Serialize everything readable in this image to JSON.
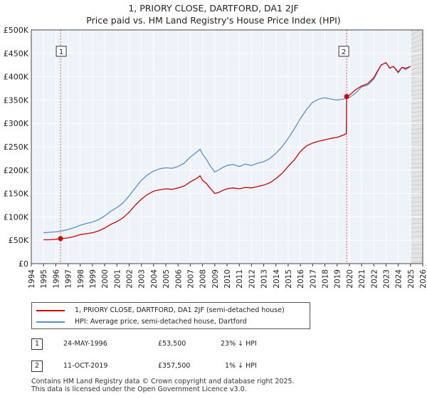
{
  "chart_data": {
    "type": "line",
    "title": "1, PRIORY CLOSE, DARTFORD, DA1 2JF",
    "subtitle": "Price paid vs. HM Land Registry's House Price Index (HPI)",
    "xlim": [
      1994,
      2026
    ],
    "ylim": [
      0,
      500000
    ],
    "x_ticks": [
      "1994",
      "1995",
      "1996",
      "1997",
      "1998",
      "1999",
      "2000",
      "2001",
      "2002",
      "2003",
      "2004",
      "2005",
      "2006",
      "2007",
      "2008",
      "2009",
      "2010",
      "2011",
      "2012",
      "2013",
      "2014",
      "2015",
      "2016",
      "2017",
      "2018",
      "2019",
      "2020",
      "2021",
      "2022",
      "2023",
      "2024",
      "2025",
      "2026"
    ],
    "y_ticks": [
      {
        "value": 0,
        "label": "£0"
      },
      {
        "value": 50000,
        "label": "£50K"
      },
      {
        "value": 100000,
        "label": "£100K"
      },
      {
        "value": 150000,
        "label": "£150K"
      },
      {
        "value": 200000,
        "label": "£200K"
      },
      {
        "value": 250000,
        "label": "£250K"
      },
      {
        "value": 300000,
        "label": "£300K"
      },
      {
        "value": 350000,
        "label": "£350K"
      },
      {
        "value": 400000,
        "label": "£400K"
      },
      {
        "value": 450000,
        "label": "£450K"
      },
      {
        "value": 500000,
        "label": "£500K"
      }
    ],
    "grid": true,
    "series": [
      {
        "name": "1, PRIORY CLOSE, DARTFORD, DA1 2JF (semi-detached house)",
        "color": "#cc0000",
        "x": [
          1995.0,
          1995.5,
          1996.0,
          1996.39,
          1997.0,
          1997.5,
          1998.0,
          1998.5,
          1999.0,
          1999.5,
          2000.0,
          2000.5,
          2001.0,
          2001.5,
          2002.0,
          2002.5,
          2003.0,
          2003.5,
          2004.0,
          2004.5,
          2005.0,
          2005.5,
          2006.0,
          2006.5,
          2007.0,
          2007.5,
          2007.8,
          2008.0,
          2008.3,
          2008.6,
          2009.0,
          2009.3,
          2009.6,
          2010.0,
          2010.5,
          2011.0,
          2011.5,
          2012.0,
          2012.5,
          2013.0,
          2013.5,
          2014.0,
          2014.5,
          2015.0,
          2015.5,
          2016.0,
          2016.5,
          2017.0,
          2017.5,
          2018.0,
          2018.5,
          2019.0,
          2019.5,
          2019.75,
          2019.78,
          2020.0,
          2020.5,
          2021.0,
          2021.5,
          2022.0,
          2022.3,
          2022.6,
          2023.0,
          2023.3,
          2023.6,
          2024.0,
          2024.3,
          2024.6,
          2025.0
        ],
        "values": [
          51000,
          51000,
          52000,
          53500,
          55000,
          58000,
          62000,
          64000,
          66000,
          70000,
          76000,
          84000,
          90000,
          98000,
          110000,
          125000,
          138000,
          148000,
          155000,
          158000,
          160000,
          159000,
          162000,
          166000,
          175000,
          182000,
          188000,
          178000,
          172000,
          162000,
          150000,
          152000,
          156000,
          160000,
          162000,
          160000,
          163000,
          162000,
          165000,
          168000,
          173000,
          182000,
          193000,
          208000,
          222000,
          240000,
          252000,
          258000,
          262000,
          265000,
          268000,
          270000,
          275000,
          278000,
          357500,
          360000,
          372000,
          380000,
          385000,
          398000,
          412000,
          425000,
          430000,
          418000,
          422000,
          410000,
          420000,
          418000,
          422000
        ]
      },
      {
        "name": "HPI: Average price, semi-detached house, Dartford",
        "color": "#5b8fc7",
        "x": [
          1995.0,
          1995.5,
          1996.0,
          1996.5,
          1997.0,
          1997.5,
          1998.0,
          1998.5,
          1999.0,
          1999.5,
          2000.0,
          2000.5,
          2001.0,
          2001.5,
          2002.0,
          2002.5,
          2003.0,
          2003.5,
          2004.0,
          2004.5,
          2005.0,
          2005.5,
          2006.0,
          2006.5,
          2007.0,
          2007.5,
          2007.8,
          2008.0,
          2008.3,
          2008.6,
          2009.0,
          2009.3,
          2009.6,
          2010.0,
          2010.5,
          2011.0,
          2011.5,
          2012.0,
          2012.5,
          2013.0,
          2013.5,
          2014.0,
          2014.5,
          2015.0,
          2015.5,
          2016.0,
          2016.5,
          2017.0,
          2017.5,
          2018.0,
          2018.5,
          2019.0,
          2019.5,
          2020.0,
          2020.5,
          2021.0,
          2021.5,
          2022.0,
          2022.3,
          2022.6,
          2023.0,
          2023.3,
          2023.6,
          2024.0,
          2024.3,
          2024.6,
          2025.0
        ],
        "values": [
          66000,
          67000,
          68000,
          70000,
          73000,
          77000,
          82000,
          86000,
          89000,
          94000,
          102000,
          112000,
          120000,
          130000,
          145000,
          162000,
          178000,
          190000,
          198000,
          203000,
          205000,
          204000,
          208000,
          215000,
          228000,
          238000,
          245000,
          234000,
          224000,
          210000,
          196000,
          200000,
          205000,
          210000,
          212000,
          208000,
          213000,
          210000,
          215000,
          218000,
          225000,
          236000,
          250000,
          268000,
          288000,
          310000,
          330000,
          345000,
          352000,
          355000,
          352000,
          350000,
          352000,
          355000,
          365000,
          378000,
          382000,
          395000,
          410000,
          425000,
          430000,
          418000,
          422000,
          408000,
          420000,
          415000,
          422000
        ]
      }
    ],
    "annotations": [
      {
        "label": "1",
        "x": 1996.39,
        "value": 53500
      },
      {
        "label": "2",
        "x": 2019.78,
        "value": 357500
      }
    ],
    "future_shading_from": 2025.0
  },
  "legend": {
    "items": [
      {
        "label": "1, PRIORY CLOSE, DARTFORD, DA1 2JF (semi-detached house)",
        "color": "#cc0000"
      },
      {
        "label": "HPI: Average price, semi-detached house, Dartford",
        "color": "#5b8fc7"
      }
    ]
  },
  "transactions": [
    {
      "num": "1",
      "date": "24-MAY-1996",
      "price": "£53,500",
      "hpi": "23% ↓ HPI"
    },
    {
      "num": "2",
      "date": "11-OCT-2019",
      "price": "£357,500",
      "hpi": "1% ↓ HPI"
    }
  ],
  "footer": {
    "line1": "Contains HM Land Registry data © Crown copyright and database right 2025.",
    "line2": "This data is licensed under the Open Government Licence v3.0."
  }
}
